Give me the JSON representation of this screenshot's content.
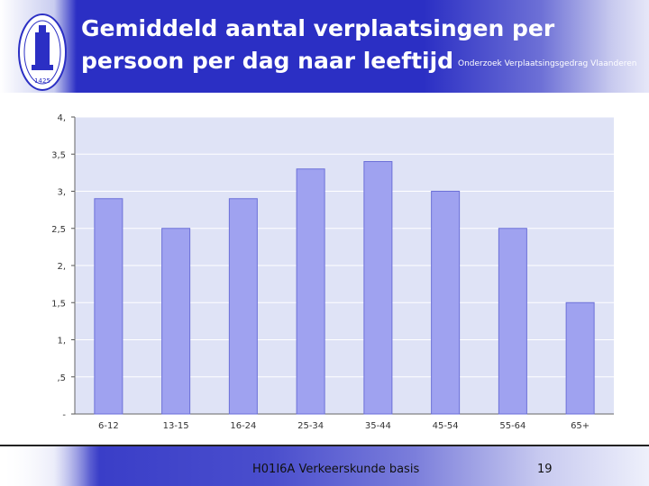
{
  "header": {
    "title_line1": "Gemiddeld aantal verplaatsingen per",
    "title_line2": "persoon per dag naar leeftijd",
    "source": "Onderzoek Verplaatsingsgedrag Vlaanderen",
    "logo_year": "1425"
  },
  "colors": {
    "header_blue": "#2b2fc4",
    "bar_fill": "#9fa2f0",
    "bar_stroke": "#6c70d8",
    "plot_bg": "#dfe3f6"
  },
  "chart_data": {
    "type": "bar",
    "title": "",
    "xlabel": "",
    "ylabel": "",
    "categories": [
      "6-12",
      "13-15",
      "16-24",
      "25-34",
      "35-44",
      "45-54",
      "55-64",
      "65+"
    ],
    "values": [
      2.9,
      2.5,
      2.9,
      3.3,
      3.4,
      3.0,
      2.5,
      1.5
    ],
    "ylim": [
      0,
      4
    ],
    "y_ticks": [
      {
        "value": 0,
        "label": "-"
      },
      {
        "value": 0.5,
        "label": ",5"
      },
      {
        "value": 1,
        "label": "1,"
      },
      {
        "value": 1.5,
        "label": "1,5"
      },
      {
        "value": 2,
        "label": "2,"
      },
      {
        "value": 2.5,
        "label": "2,5"
      },
      {
        "value": 3,
        "label": "3,"
      },
      {
        "value": 3.5,
        "label": "3,5"
      },
      {
        "value": 4,
        "label": "4,"
      }
    ],
    "grid": true,
    "legend": "none"
  },
  "footer": {
    "course": "H01I6A Verkeerskunde basis",
    "page": "19"
  }
}
